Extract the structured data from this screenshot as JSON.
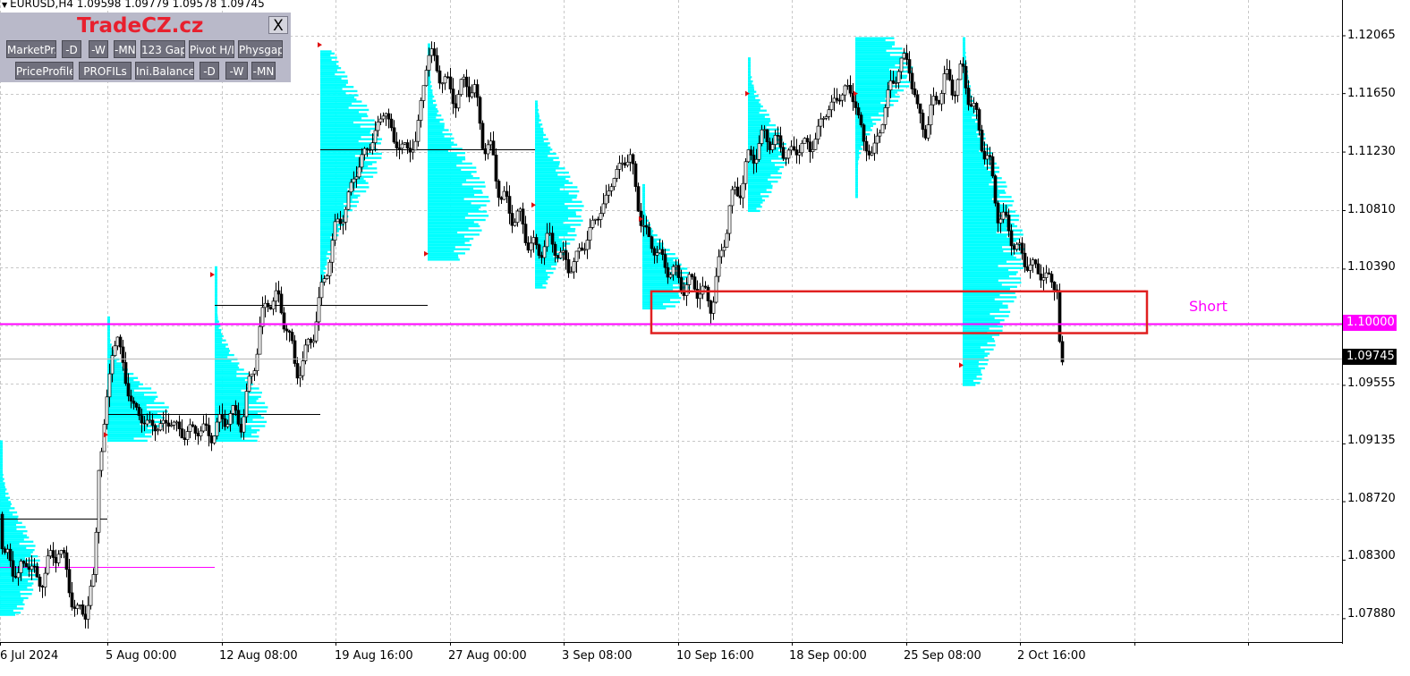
{
  "header": {
    "symbol_info": "EURUSD,H4  1.09598 1.09779 1.09578 1.09745"
  },
  "panel": {
    "brand": "TradeCZ.cz",
    "close_label": "X",
    "row1": [
      "MarketPr.",
      "-D",
      "-W",
      "-MN",
      "123 Gap",
      "Pivot H/L",
      "Physgap"
    ],
    "row2": [
      "PriceProfile",
      "PROFILs",
      "Ini.Balance",
      "-D",
      "-W",
      "-MN"
    ]
  },
  "annotation": {
    "short_label": "Short"
  },
  "price_axis": {
    "ticks": [
      "1.12065",
      "1.11650",
      "1.11230",
      "1.10810",
      "1.10390",
      "1.09555",
      "1.09135",
      "1.08720",
      "1.08300",
      "1.07880"
    ],
    "current_price": "1.09745",
    "level_price": "1.10000"
  },
  "time_axis": {
    "labels": [
      "6 Jul 2024",
      "5 Aug 00:00",
      "12 Aug 08:00",
      "19 Aug 16:00",
      "27 Aug 00:00",
      "3 Sep 08:00",
      "10 Sep 16:00",
      "18 Sep 00:00",
      "25 Sep 08:00",
      "2 Oct 16:00"
    ]
  },
  "colors": {
    "profile": "#00ffff",
    "level_line": "#ff00ff",
    "short_box": "#e02020",
    "candles": "#000000",
    "grid": "#c8c8c8"
  },
  "chart_data": {
    "type": "candlestick",
    "symbol": "EURUSD",
    "timeframe": "H4",
    "last_bar": {
      "open": 1.09598,
      "high": 1.09779,
      "low": 1.09578,
      "close": 1.09745
    },
    "ylim": [
      1.077,
      1.1225
    ],
    "y_ticks": [
      1.12065,
      1.1165,
      1.1123,
      1.1081,
      1.1039,
      1.09555,
      1.09135,
      1.0872,
      1.083,
      1.0788
    ],
    "horizontal_level": 1.1,
    "price_path": [
      [
        0,
        1.0863
      ],
      [
        3,
        1.0825
      ],
      [
        10,
        1.0835
      ],
      [
        20,
        1.0815
      ],
      [
        30,
        1.0835
      ],
      [
        40,
        1.0812
      ],
      [
        55,
        1.0828
      ],
      [
        65,
        1.084
      ],
      [
        75,
        1.0818
      ],
      [
        85,
        1.079
      ],
      [
        95,
        1.0795
      ],
      [
        105,
        1.0815
      ],
      [
        110,
        1.09
      ],
      [
        118,
        1.0935
      ],
      [
        125,
        1.098
      ],
      [
        130,
        1.0995
      ],
      [
        135,
        1.0975
      ],
      [
        140,
        1.0958
      ],
      [
        150,
        1.0938
      ],
      [
        160,
        1.093
      ],
      [
        175,
        1.0925
      ],
      [
        190,
        1.093
      ],
      [
        205,
        1.092
      ],
      [
        220,
        1.0925
      ],
      [
        235,
        1.092
      ],
      [
        255,
        1.0935
      ],
      [
        270,
        1.093
      ],
      [
        280,
        1.096
      ],
      [
        290,
        1.0995
      ],
      [
        300,
        1.102
      ],
      [
        310,
        1.1015
      ],
      [
        320,
        1.1
      ],
      [
        330,
        1.0965
      ],
      [
        340,
        1.0975
      ],
      [
        350,
        1.0995
      ],
      [
        358,
        1.102
      ],
      [
        365,
        1.104
      ],
      [
        375,
        1.107
      ],
      [
        385,
        1.108
      ],
      [
        395,
        1.1105
      ],
      [
        405,
        1.112
      ],
      [
        415,
        1.113
      ],
      [
        430,
        1.1155
      ],
      [
        440,
        1.113
      ],
      [
        455,
        1.1125
      ],
      [
        465,
        1.113
      ],
      [
        475,
        1.1185
      ],
      [
        480,
        1.1195
      ],
      [
        490,
        1.118
      ],
      [
        500,
        1.117
      ],
      [
        510,
        1.116
      ],
      [
        520,
        1.1175
      ],
      [
        530,
        1.1165
      ],
      [
        540,
        1.113
      ],
      [
        550,
        1.112
      ],
      [
        560,
        1.109
      ],
      [
        570,
        1.108
      ],
      [
        580,
        1.1075
      ],
      [
        590,
        1.106
      ],
      [
        600,
        1.105
      ],
      [
        610,
        1.106
      ],
      [
        620,
        1.1055
      ],
      [
        635,
        1.104
      ],
      [
        645,
        1.1048
      ],
      [
        655,
        1.106
      ],
      [
        665,
        1.1075
      ],
      [
        675,
        1.1085
      ],
      [
        685,
        1.1105
      ],
      [
        695,
        1.1115
      ],
      [
        705,
        1.112
      ],
      [
        715,
        1.1075
      ],
      [
        725,
        1.106
      ],
      [
        735,
        1.105
      ],
      [
        745,
        1.104
      ],
      [
        755,
        1.1035
      ],
      [
        765,
        1.1025
      ],
      [
        775,
        1.103
      ],
      [
        785,
        1.102
      ],
      [
        795,
        1.1015
      ],
      [
        805,
        1.1045
      ],
      [
        815,
        1.1085
      ],
      [
        825,
        1.1095
      ],
      [
        835,
        1.1115
      ],
      [
        845,
        1.1125
      ],
      [
        855,
        1.1135
      ],
      [
        865,
        1.113
      ],
      [
        875,
        1.1125
      ],
      [
        885,
        1.112
      ],
      [
        895,
        1.113
      ],
      [
        905,
        1.1125
      ],
      [
        915,
        1.114
      ],
      [
        925,
        1.1155
      ],
      [
        935,
        1.116
      ],
      [
        945,
        1.117
      ],
      [
        955,
        1.116
      ],
      [
        965,
        1.113
      ],
      [
        975,
        1.112
      ],
      [
        985,
        1.1145
      ],
      [
        995,
        1.117
      ],
      [
        1005,
        1.1185
      ],
      [
        1015,
        1.119
      ],
      [
        1025,
        1.115
      ],
      [
        1035,
        1.114
      ],
      [
        1045,
        1.116
      ],
      [
        1055,
        1.1175
      ],
      [
        1065,
        1.117
      ],
      [
        1075,
        1.118
      ],
      [
        1085,
        1.116
      ],
      [
        1095,
        1.1135
      ],
      [
        1105,
        1.1115
      ],
      [
        1115,
        1.108
      ],
      [
        1125,
        1.107
      ],
      [
        1135,
        1.1055
      ],
      [
        1145,
        1.1045
      ],
      [
        1155,
        1.104
      ],
      [
        1165,
        1.1035
      ],
      [
        1175,
        1.103
      ],
      [
        1182,
        1.1025
      ],
      [
        1185,
        1.0965
      ],
      [
        1190,
        1.0975
      ]
    ],
    "weekly_profiles": [
      {
        "x0": 0,
        "x1": 120,
        "lo": 1.079,
        "hi": 1.0915,
        "poc": 1.0825,
        "maxw": 45
      },
      {
        "x0": 120,
        "x1": 240,
        "lo": 1.0915,
        "hi": 1.1005,
        "poc": 1.0935,
        "maxw": 70
      },
      {
        "x0": 240,
        "x1": 358,
        "lo": 1.0915,
        "hi": 1.104,
        "poc": 1.0935,
        "maxw": 60
      },
      {
        "x0": 358,
        "x1": 478,
        "lo": 1.1025,
        "hi": 1.1195,
        "poc": 1.1125,
        "maxw": 70
      },
      {
        "x0": 478,
        "x1": 598,
        "lo": 1.1045,
        "hi": 1.12,
        "poc": 1.1085,
        "maxw": 70
      },
      {
        "x0": 598,
        "x1": 718,
        "lo": 1.1025,
        "hi": 1.116,
        "poc": 1.108,
        "maxw": 55
      },
      {
        "x0": 718,
        "x1": 836,
        "lo": 1.101,
        "hi": 1.11,
        "poc": 1.103,
        "maxw": 55
      },
      {
        "x0": 836,
        "x1": 956,
        "lo": 1.108,
        "hi": 1.119,
        "poc": 1.112,
        "maxw": 45
      },
      {
        "x0": 956,
        "x1": 1076,
        "lo": 1.109,
        "hi": 1.1205,
        "poc": 1.118,
        "maxw": 65
      },
      {
        "x0": 1076,
        "x1": 1200,
        "lo": 1.0955,
        "hi": 1.1205,
        "poc": 1.105,
        "maxw": 70
      }
    ],
    "poc_lines": [
      {
        "x0": 0,
        "x1": 120,
        "price": 1.086
      },
      {
        "x0": 120,
        "x1": 358,
        "price": 1.0935
      },
      {
        "x0": 240,
        "x1": 478,
        "price": 1.1013
      },
      {
        "x0": 358,
        "x1": 598,
        "price": 1.1125
      }
    ],
    "short_zone": {
      "price_top": 1.1023,
      "price_bottom": 1.0993,
      "x0": 728,
      "x1": 1282
    }
  }
}
